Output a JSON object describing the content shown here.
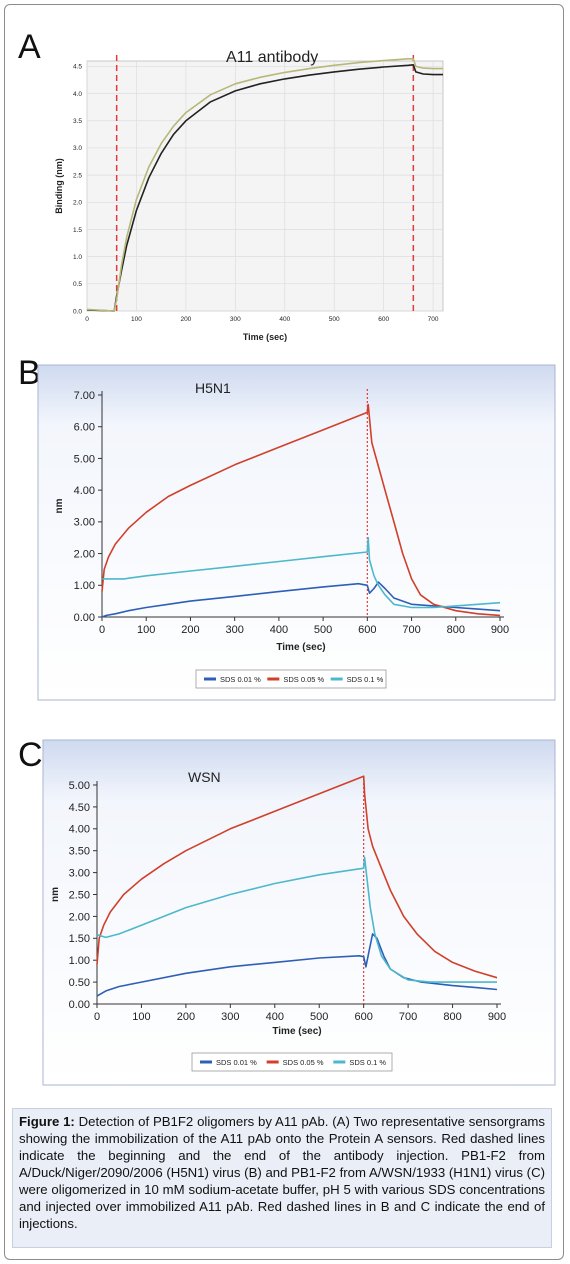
{
  "chart_data": [
    {
      "panel": "A",
      "type": "line",
      "title": "A11 antibody",
      "xlabel": "Time (sec)",
      "ylabel": "Binding (nm)",
      "xlim": [
        0,
        720
      ],
      "ylim": [
        0,
        4.6
      ],
      "xticks": [
        0,
        100,
        200,
        300,
        400,
        500,
        600,
        700
      ],
      "yticks": [
        0.0,
        0.5,
        1.0,
        1.5,
        2.0,
        2.5,
        3.0,
        3.5,
        4.0,
        4.5
      ],
      "grid": true,
      "vlines": [
        60,
        660
      ],
      "series": [
        {
          "color": "#222222",
          "x": [
            0,
            55,
            60,
            70,
            80,
            100,
            125,
            150,
            175,
            200,
            250,
            300,
            350,
            400,
            450,
            500,
            550,
            600,
            650,
            660,
            665,
            680,
            700,
            720
          ],
          "y": [
            0.02,
            0.0,
            0.28,
            0.75,
            1.2,
            1.85,
            2.45,
            2.9,
            3.25,
            3.5,
            3.85,
            4.05,
            4.18,
            4.27,
            4.34,
            4.4,
            4.45,
            4.49,
            4.52,
            4.53,
            4.4,
            4.36,
            4.35,
            4.35
          ]
        },
        {
          "color": "#b7b877",
          "x": [
            0,
            55,
            60,
            70,
            80,
            100,
            125,
            150,
            175,
            200,
            250,
            300,
            350,
            400,
            450,
            500,
            550,
            600,
            650,
            660,
            665,
            680,
            700,
            720
          ],
          "y": [
            0.03,
            0.0,
            0.22,
            0.85,
            1.35,
            2.05,
            2.65,
            3.08,
            3.4,
            3.65,
            3.98,
            4.18,
            4.3,
            4.39,
            4.46,
            4.52,
            4.57,
            4.61,
            4.64,
            4.64,
            4.5,
            4.47,
            4.46,
            4.46
          ]
        }
      ]
    },
    {
      "panel": "B",
      "type": "line",
      "title": "H5N1",
      "xlabel": "Time (sec)",
      "ylabel": "nm",
      "xlim": [
        0,
        900
      ],
      "ylim": [
        0,
        7
      ],
      "xticks": [
        "0",
        "100",
        "200",
        "300",
        "400",
        "500",
        "600",
        "700",
        "800",
        "900"
      ],
      "yticks": [
        "0.00",
        "1.00",
        "2.00",
        "3.00",
        "4.00",
        "5.00",
        "6.00",
        "7.00"
      ],
      "vlines": [
        600
      ],
      "legend": "bottom",
      "series": [
        {
          "name": "SDS 0.01 %",
          "color": "#2e5fb8",
          "x": [
            0,
            10,
            30,
            60,
            100,
            150,
            200,
            300,
            400,
            500,
            580,
            600,
            605,
            615,
            625,
            640,
            660,
            700,
            750,
            800,
            850,
            900
          ],
          "y": [
            0.0,
            0.05,
            0.1,
            0.2,
            0.3,
            0.4,
            0.5,
            0.65,
            0.8,
            0.95,
            1.05,
            1.0,
            0.75,
            0.9,
            1.1,
            0.9,
            0.6,
            0.4,
            0.35,
            0.3,
            0.25,
            0.2
          ]
        },
        {
          "name": "SDS 0.05 %",
          "color": "#d0402a",
          "x": [
            0,
            5,
            15,
            30,
            60,
            100,
            150,
            200,
            300,
            400,
            500,
            600,
            602,
            610,
            620,
            640,
            660,
            680,
            700,
            720,
            750,
            800,
            850,
            900
          ],
          "y": [
            0.8,
            1.5,
            1.9,
            2.3,
            2.8,
            3.3,
            3.8,
            4.15,
            4.8,
            5.35,
            5.9,
            6.45,
            6.7,
            5.5,
            5.0,
            4.0,
            3.0,
            2.0,
            1.2,
            0.7,
            0.4,
            0.2,
            0.1,
            0.05
          ]
        },
        {
          "name": "SDS 0.1 %",
          "color": "#4db8cc",
          "x": [
            0,
            50,
            100,
            200,
            300,
            400,
            500,
            600,
            602,
            605,
            615,
            625,
            640,
            660,
            700,
            750,
            800,
            850,
            900
          ],
          "y": [
            1.2,
            1.2,
            1.3,
            1.45,
            1.6,
            1.75,
            1.9,
            2.05,
            2.5,
            1.8,
            1.3,
            1.0,
            0.7,
            0.4,
            0.3,
            0.3,
            0.35,
            0.4,
            0.45
          ]
        }
      ]
    },
    {
      "panel": "C",
      "type": "line",
      "title": "WSN",
      "xlabel": "Time (sec)",
      "ylabel": "nm",
      "xlim": [
        0,
        900
      ],
      "ylim": [
        0,
        5
      ],
      "xticks": [
        "0",
        "100",
        "200",
        "300",
        "400",
        "500",
        "600",
        "700",
        "800",
        "900"
      ],
      "yticks": [
        "0.00",
        "0.50",
        "1.00",
        "1.50",
        "2.00",
        "2.50",
        "3.00",
        "3.50",
        "4.00",
        "4.50",
        "5.00"
      ],
      "vlines": [
        600
      ],
      "legend": "bottom",
      "series": [
        {
          "name": "SDS 0.01 %",
          "color": "#2e5fb8",
          "x": [
            0,
            20,
            50,
            100,
            200,
            300,
            400,
            500,
            590,
            600,
            605,
            612,
            620,
            630,
            645,
            660,
            690,
            730,
            800,
            850,
            900
          ],
          "y": [
            0.18,
            0.3,
            0.4,
            0.5,
            0.7,
            0.85,
            0.95,
            1.05,
            1.1,
            1.08,
            0.85,
            1.2,
            1.6,
            1.5,
            1.1,
            0.8,
            0.6,
            0.5,
            0.42,
            0.38,
            0.33
          ]
        },
        {
          "name": "SDS 0.05 %",
          "color": "#d0402a",
          "x": [
            0,
            5,
            15,
            30,
            60,
            100,
            150,
            200,
            300,
            400,
            500,
            600,
            602,
            610,
            620,
            640,
            660,
            690,
            720,
            760,
            800,
            850,
            900
          ],
          "y": [
            0.9,
            1.5,
            1.8,
            2.1,
            2.5,
            2.85,
            3.2,
            3.5,
            4.0,
            4.4,
            4.8,
            5.2,
            4.8,
            4.0,
            3.6,
            3.1,
            2.6,
            2.0,
            1.6,
            1.2,
            0.95,
            0.75,
            0.6
          ]
        },
        {
          "name": "SDS 0.1 %",
          "color": "#4db8cc",
          "x": [
            0,
            20,
            50,
            100,
            200,
            300,
            400,
            500,
            600,
            602,
            606,
            615,
            625,
            640,
            660,
            700,
            750,
            800,
            850,
            900
          ],
          "y": [
            1.58,
            1.52,
            1.6,
            1.8,
            2.2,
            2.5,
            2.75,
            2.95,
            3.1,
            3.35,
            3.0,
            2.2,
            1.6,
            1.1,
            0.8,
            0.55,
            0.5,
            0.5,
            0.5,
            0.5
          ]
        }
      ]
    }
  ],
  "caption": {
    "label": "Figure 1:",
    "text": " Detection of PB1F2 oligomers by A11 pAb. (A) Two representative sensorgrams showing the immobilization of the A11 pAb onto the Protein A sensors. Red dashed lines indicate the beginning and the end of the antibody injection. PB1-F2 from A/Duck/Niger/2090/2006 (H5N1) virus (B) and PB1-F2 from A/WSN/1933 (H1N1) virus (C) were oligomerized in 10 mM sodium-acetate buffer, pH 5 with various SDS concentrations and injected over immobilized A11 pAb. Red dashed lines in B and C indicate the end of injections."
  }
}
